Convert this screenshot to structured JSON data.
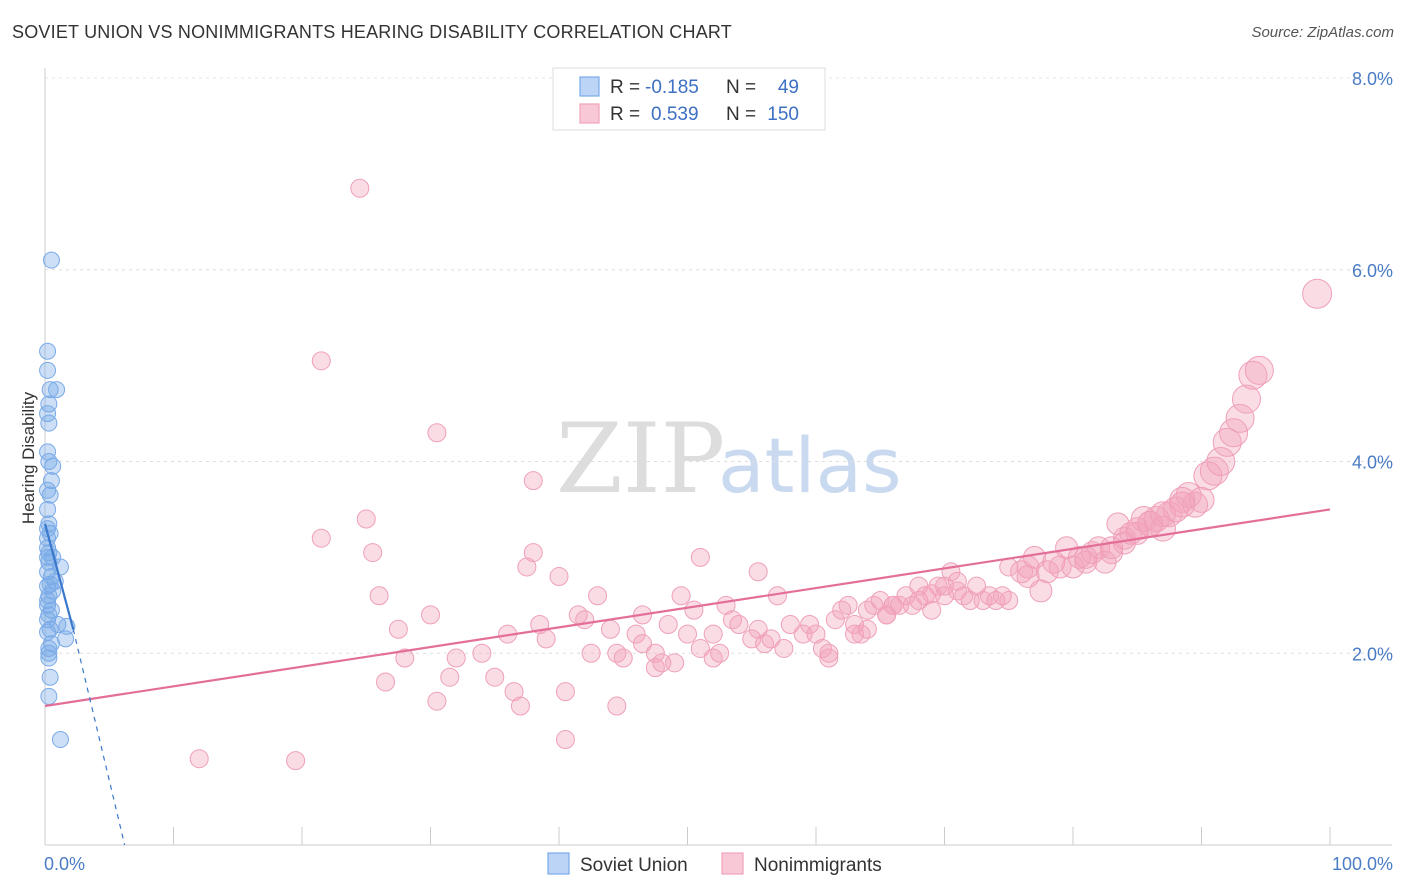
{
  "title": "SOVIET UNION VS NONIMMIGRANTS HEARING DISABILITY CORRELATION CHART",
  "source": "Source: ZipAtlas.com",
  "watermark": {
    "zip": "ZIP",
    "atlas": "atlas"
  },
  "legend": {
    "r_label": "R =",
    "n_label": "N =",
    "rows": [
      {
        "r": "-0.185",
        "n": "49"
      },
      {
        "r": "0.539",
        "n": "150"
      }
    ]
  },
  "chart_data": {
    "type": "scatter",
    "title": "SOVIET UNION VS NONIMMIGRANTS HEARING DISABILITY CORRELATION CHART",
    "xlabel": "",
    "ylabel": "Hearing Disability",
    "xlim": [
      0,
      100
    ],
    "ylim": [
      0,
      8
    ],
    "y_ticks": [
      2,
      4,
      6,
      8
    ],
    "y_tick_labels": [
      "2.0%",
      "4.0%",
      "6.0%",
      "8.0%"
    ],
    "x_tick_labels": [
      "0.0%",
      "100.0%"
    ],
    "grid": "horizontal dashed",
    "legend_position": "top-center",
    "colors": {
      "soviet": "#7aaae8",
      "soviet_line": "#3a78cc",
      "nonimm": "#f1a3bb",
      "nonimm_line": "#e36f98",
      "tick_text": "#4a7cc4"
    },
    "series": [
      {
        "name": "Soviet Union",
        "r": -0.185,
        "n": 49,
        "trend": {
          "x": [
            0,
            2.2
          ],
          "y": [
            3.35,
            2.25
          ]
        },
        "trend_dashed": {
          "x": [
            2.2,
            6.2
          ],
          "y": [
            2.25,
            0.0
          ]
        },
        "points": [
          [
            0.5,
            6.1
          ],
          [
            0.2,
            5.15
          ],
          [
            0.2,
            4.95
          ],
          [
            0.9,
            4.75
          ],
          [
            0.4,
            4.75
          ],
          [
            0.3,
            4.6
          ],
          [
            0.2,
            4.5
          ],
          [
            0.3,
            4.4
          ],
          [
            0.2,
            4.1
          ],
          [
            0.3,
            4.0
          ],
          [
            0.6,
            3.95
          ],
          [
            0.5,
            3.8
          ],
          [
            0.2,
            3.7
          ],
          [
            0.4,
            3.65
          ],
          [
            0.2,
            3.5
          ],
          [
            0.3,
            3.35
          ],
          [
            0.2,
            3.3
          ],
          [
            0.4,
            3.25
          ],
          [
            0.2,
            3.2
          ],
          [
            0.3,
            3.05
          ],
          [
            0.6,
            3.0
          ],
          [
            0.2,
            3.0
          ],
          [
            0.3,
            2.95
          ],
          [
            1.2,
            2.9
          ],
          [
            0.2,
            2.85
          ],
          [
            0.5,
            2.8
          ],
          [
            0.8,
            2.75
          ],
          [
            0.4,
            2.72
          ],
          [
            0.2,
            2.7
          ],
          [
            0.6,
            2.65
          ],
          [
            0.3,
            2.6
          ],
          [
            0.2,
            2.5
          ],
          [
            0.5,
            2.45
          ],
          [
            0.3,
            2.4
          ],
          [
            0.2,
            2.35
          ],
          [
            1.0,
            2.3
          ],
          [
            1.7,
            2.28
          ],
          [
            0.4,
            2.25
          ],
          [
            0.2,
            2.22
          ],
          [
            1.6,
            2.15
          ],
          [
            0.5,
            2.1
          ],
          [
            0.3,
            2.05
          ],
          [
            0.3,
            2.0
          ],
          [
            0.3,
            1.95
          ],
          [
            0.4,
            1.75
          ],
          [
            0.3,
            1.55
          ],
          [
            1.2,
            1.1
          ],
          [
            0.2,
            3.1
          ],
          [
            0.2,
            2.55
          ]
        ]
      },
      {
        "name": "Nonimmigrants",
        "r": 0.539,
        "n": 150,
        "trend": {
          "x": [
            0,
            100
          ],
          "y": [
            1.45,
            3.5
          ]
        },
        "points": [
          [
            24.5,
            6.85
          ],
          [
            21.5,
            5.05
          ],
          [
            30.5,
            4.3
          ],
          [
            38,
            3.8
          ],
          [
            25,
            3.4
          ],
          [
            21.5,
            3.2
          ],
          [
            25.5,
            3.05
          ],
          [
            26,
            2.6
          ],
          [
            27.5,
            2.25
          ],
          [
            28,
            1.95
          ],
          [
            30,
            2.4
          ],
          [
            32,
            1.95
          ],
          [
            34,
            2.0
          ],
          [
            30.5,
            1.5
          ],
          [
            31.5,
            1.75
          ],
          [
            26.5,
            1.7
          ],
          [
            36,
            2.2
          ],
          [
            35,
            1.75
          ],
          [
            36.5,
            1.6
          ],
          [
            37,
            1.45
          ],
          [
            37.5,
            2.9
          ],
          [
            38,
            3.05
          ],
          [
            38.5,
            2.3
          ],
          [
            39,
            2.15
          ],
          [
            40,
            2.8
          ],
          [
            40.5,
            1.6
          ],
          [
            40.5,
            1.1
          ],
          [
            41.5,
            2.4
          ],
          [
            42,
            2.35
          ],
          [
            42.5,
            2.0
          ],
          [
            43,
            2.6
          ],
          [
            44,
            2.25
          ],
          [
            44.5,
            2.0
          ],
          [
            45,
            1.95
          ],
          [
            44.5,
            1.45
          ],
          [
            46,
            2.2
          ],
          [
            46.5,
            2.1
          ],
          [
            46.5,
            2.4
          ],
          [
            47.5,
            2.0
          ],
          [
            47.5,
            1.85
          ],
          [
            48,
            1.9
          ],
          [
            48.5,
            2.3
          ],
          [
            49,
            1.9
          ],
          [
            49.5,
            2.6
          ],
          [
            50,
            2.2
          ],
          [
            50.5,
            2.45
          ],
          [
            51,
            3.0
          ],
          [
            51,
            2.05
          ],
          [
            52,
            1.95
          ],
          [
            52.5,
            2.0
          ],
          [
            52,
            2.2
          ],
          [
            53,
            2.5
          ],
          [
            53.5,
            2.35
          ],
          [
            54,
            2.3
          ],
          [
            55,
            2.15
          ],
          [
            55.5,
            2.25
          ],
          [
            55.5,
            2.85
          ],
          [
            56,
            2.1
          ],
          [
            56.5,
            2.15
          ],
          [
            57,
            2.6
          ],
          [
            57.5,
            2.05
          ],
          [
            58,
            2.3
          ],
          [
            59,
            2.2
          ],
          [
            59.5,
            2.3
          ],
          [
            60,
            2.2
          ],
          [
            60.5,
            2.05
          ],
          [
            61,
            2.0
          ],
          [
            61,
            1.95
          ],
          [
            61.5,
            2.35
          ],
          [
            62,
            2.45
          ],
          [
            62.5,
            2.5
          ],
          [
            63,
            2.3
          ],
          [
            63.5,
            2.2
          ],
          [
            64,
            2.45
          ],
          [
            64.5,
            2.5
          ],
          [
            65,
            2.55
          ],
          [
            65.5,
            2.4
          ],
          [
            66,
            2.5
          ],
          [
            66,
            2.5
          ],
          [
            67,
            2.6
          ],
          [
            67.5,
            2.5
          ],
          [
            68,
            2.7
          ],
          [
            68.5,
            2.6
          ],
          [
            69,
            2.45
          ],
          [
            69.5,
            2.7
          ],
          [
            70.5,
            2.85
          ],
          [
            71,
            2.65
          ],
          [
            71.5,
            2.6
          ],
          [
            72.5,
            2.7
          ],
          [
            73,
            2.55
          ],
          [
            73.5,
            2.6
          ],
          [
            74,
            2.55
          ],
          [
            75,
            2.9
          ],
          [
            76,
            2.85
          ],
          [
            76.5,
            2.9
          ],
          [
            77,
            3.0
          ],
          [
            78,
            2.85
          ],
          [
            79,
            2.9
          ],
          [
            79.5,
            3.1
          ],
          [
            80.5,
            3.0
          ],
          [
            81,
            2.95
          ],
          [
            81.5,
            3.05
          ],
          [
            82,
            3.1
          ],
          [
            83,
            3.05
          ],
          [
            83.5,
            3.35
          ],
          [
            84,
            3.2
          ],
          [
            84.5,
            3.25
          ],
          [
            85,
            3.3
          ],
          [
            85.5,
            3.4
          ],
          [
            86,
            3.35
          ],
          [
            86.5,
            3.4
          ],
          [
            87,
            3.3
          ],
          [
            87.5,
            3.45
          ],
          [
            88,
            3.5
          ],
          [
            88.5,
            3.6
          ],
          [
            89,
            3.65
          ],
          [
            89.5,
            3.55
          ],
          [
            90,
            3.6
          ],
          [
            90.5,
            3.85
          ],
          [
            91,
            3.9
          ],
          [
            91.5,
            4.0
          ],
          [
            92,
            4.2
          ],
          [
            92.5,
            4.3
          ],
          [
            93,
            4.45
          ],
          [
            93.5,
            4.65
          ],
          [
            94,
            4.9
          ],
          [
            94.5,
            4.95
          ],
          [
            99,
            5.75
          ],
          [
            12,
            0.9
          ],
          [
            19.5,
            0.88
          ],
          [
            63,
            2.2
          ],
          [
            64,
            2.25
          ],
          [
            65.5,
            2.4
          ],
          [
            70,
            2.6
          ],
          [
            75,
            2.55
          ],
          [
            77.5,
            2.65
          ],
          [
            80,
            2.9
          ],
          [
            82.5,
            2.95
          ],
          [
            84,
            3.15
          ],
          [
            86,
            3.35
          ],
          [
            87,
            3.45
          ],
          [
            88.5,
            3.55
          ],
          [
            72,
            2.55
          ],
          [
            74.5,
            2.6
          ],
          [
            66.5,
            2.5
          ],
          [
            68,
            2.55
          ],
          [
            69,
            2.62
          ],
          [
            70,
            2.7
          ],
          [
            71,
            2.75
          ],
          [
            76.5,
            2.8
          ],
          [
            78.5,
            2.95
          ],
          [
            81,
            3.0
          ],
          [
            83,
            3.1
          ],
          [
            85,
            3.25
          ]
        ]
      }
    ]
  },
  "bottom_legend": [
    "Soviet Union",
    "Nonimmigrants"
  ]
}
